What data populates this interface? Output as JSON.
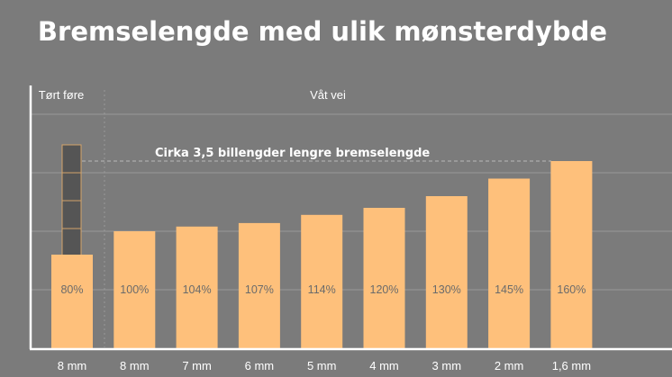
{
  "title": "Bremselengde med ulik mønsterdybde",
  "colors": {
    "background": "#7b7b7b",
    "bar": "#fec07b",
    "grid": "#9a9a9a",
    "axis": "#ffffff",
    "label_text": "#6b6b6b"
  },
  "chart_data": {
    "type": "bar",
    "title": "Bremselengde med ulik mønsterdybde",
    "categories": [
      "8 mm",
      "8 mm",
      "7 mm",
      "6 mm",
      "5 mm",
      "4 mm",
      "3 mm",
      "2 mm",
      "1,6 mm"
    ],
    "values": [
      80,
      100,
      104,
      107,
      114,
      120,
      130,
      145,
      160
    ],
    "data_labels": [
      "80%",
      "100%",
      "104%",
      "107%",
      "114%",
      "120%",
      "130%",
      "145%",
      "160%"
    ],
    "sections": [
      "Tørt føre",
      "Våt vei"
    ],
    "annotation": "Cirka 3,5 billengder lengre bremselengde",
    "stacked_boxes_on_first_bar": 4,
    "xlabel": "",
    "ylabel": "",
    "ylim": [
      0,
      200
    ],
    "grid": true,
    "legend": "none"
  }
}
